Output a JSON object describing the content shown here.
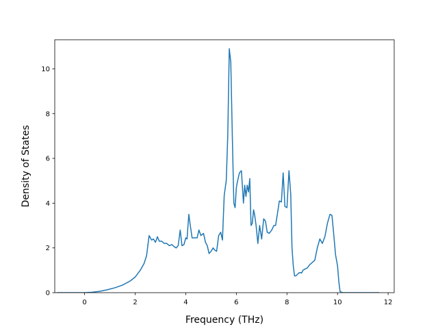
{
  "chart_data": {
    "type": "line",
    "title": "",
    "xlabel": "Frequency (THz)",
    "ylabel": "Density of States",
    "xlim": [
      -1.18,
      12.24
    ],
    "ylim": [
      0,
      11.3
    ],
    "grid": false,
    "legend": "none",
    "colors": {
      "line": "#1f77b4",
      "axes": "#000000",
      "background": "#ffffff"
    },
    "xticks": [
      0,
      2,
      4,
      6,
      8,
      10,
      12
    ],
    "xtick_labels": [
      "0",
      "2",
      "4",
      "6",
      "8",
      "10",
      "12"
    ],
    "yticks": [
      0,
      2,
      4,
      6,
      8,
      10
    ],
    "ytick_labels": [
      "0",
      "2",
      "4",
      "6",
      "8",
      "10"
    ],
    "series": [
      {
        "x": [
          -1.1,
          -0.5,
          0.0,
          0.3,
          0.6,
          0.9,
          1.2,
          1.5,
          1.8,
          2.0,
          2.2,
          2.35,
          2.45,
          2.55,
          2.65,
          2.72,
          2.8,
          2.88,
          2.95,
          3.05,
          3.15,
          3.25,
          3.35,
          3.45,
          3.55,
          3.62,
          3.7,
          3.78,
          3.85,
          3.93,
          4.0,
          4.05,
          4.12,
          4.18,
          4.25,
          4.35,
          4.45,
          4.52,
          4.6,
          4.7,
          4.78,
          4.85,
          4.92,
          5.0,
          5.08,
          5.15,
          5.22,
          5.3,
          5.38,
          5.45,
          5.52,
          5.6,
          5.66,
          5.72,
          5.78,
          5.84,
          5.9,
          5.95,
          6.0,
          6.05,
          6.12,
          6.2,
          6.28,
          6.33,
          6.38,
          6.43,
          6.48,
          6.53,
          6.58,
          6.63,
          6.68,
          6.72,
          6.78,
          6.85,
          6.92,
          7.0,
          7.08,
          7.15,
          7.22,
          7.3,
          7.4,
          7.48,
          7.55,
          7.62,
          7.7,
          7.78,
          7.85,
          7.92,
          8.0,
          8.08,
          8.15,
          8.2,
          8.25,
          8.3,
          8.35,
          8.4,
          8.47,
          8.52,
          8.58,
          8.63,
          8.7,
          8.8,
          8.9,
          9.0,
          9.1,
          9.2,
          9.3,
          9.4,
          9.5,
          9.6,
          9.7,
          9.78,
          9.85,
          9.92,
          10.0,
          10.05,
          10.1,
          10.2,
          10.28,
          10.32,
          10.37,
          10.42,
          10.48,
          10.55,
          10.6,
          10.7,
          11.0,
          11.65
        ],
        "values": [
          0.0,
          0.0,
          0.0,
          0.02,
          0.06,
          0.13,
          0.22,
          0.34,
          0.52,
          0.7,
          1.0,
          1.3,
          1.65,
          2.55,
          2.35,
          2.4,
          2.25,
          2.5,
          2.3,
          2.3,
          2.2,
          2.2,
          2.1,
          2.15,
          2.05,
          2.0,
          2.1,
          2.8,
          2.1,
          2.15,
          2.45,
          2.4,
          3.5,
          3.0,
          2.45,
          2.45,
          2.45,
          2.8,
          2.55,
          2.65,
          2.25,
          2.1,
          1.75,
          1.85,
          2.0,
          1.9,
          1.85,
          2.55,
          2.7,
          2.35,
          4.35,
          5.0,
          7.0,
          10.9,
          10.3,
          7.0,
          4.0,
          3.8,
          4.7,
          5.0,
          5.35,
          5.45,
          4.0,
          4.8,
          4.3,
          4.8,
          4.5,
          5.1,
          3.0,
          3.1,
          3.7,
          3.5,
          3.0,
          2.2,
          3.0,
          2.4,
          3.3,
          3.2,
          2.7,
          2.65,
          2.8,
          3.0,
          3.0,
          3.5,
          4.1,
          4.05,
          5.35,
          3.85,
          3.8,
          5.45,
          4.4,
          2.0,
          1.2,
          0.75,
          0.75,
          0.8,
          0.88,
          0.9,
          0.88,
          1.0,
          1.05,
          1.1,
          1.25,
          1.35,
          1.45,
          2.0,
          2.4,
          2.2,
          2.5,
          3.1,
          3.5,
          3.45,
          2.6,
          1.7,
          1.2,
          0.5,
          0.05,
          0.0,
          0.0,
          0.0,
          0.0,
          0.0,
          0.0,
          0.0,
          0.0,
          0.0,
          0.0,
          0.0
        ]
      }
    ]
  }
}
